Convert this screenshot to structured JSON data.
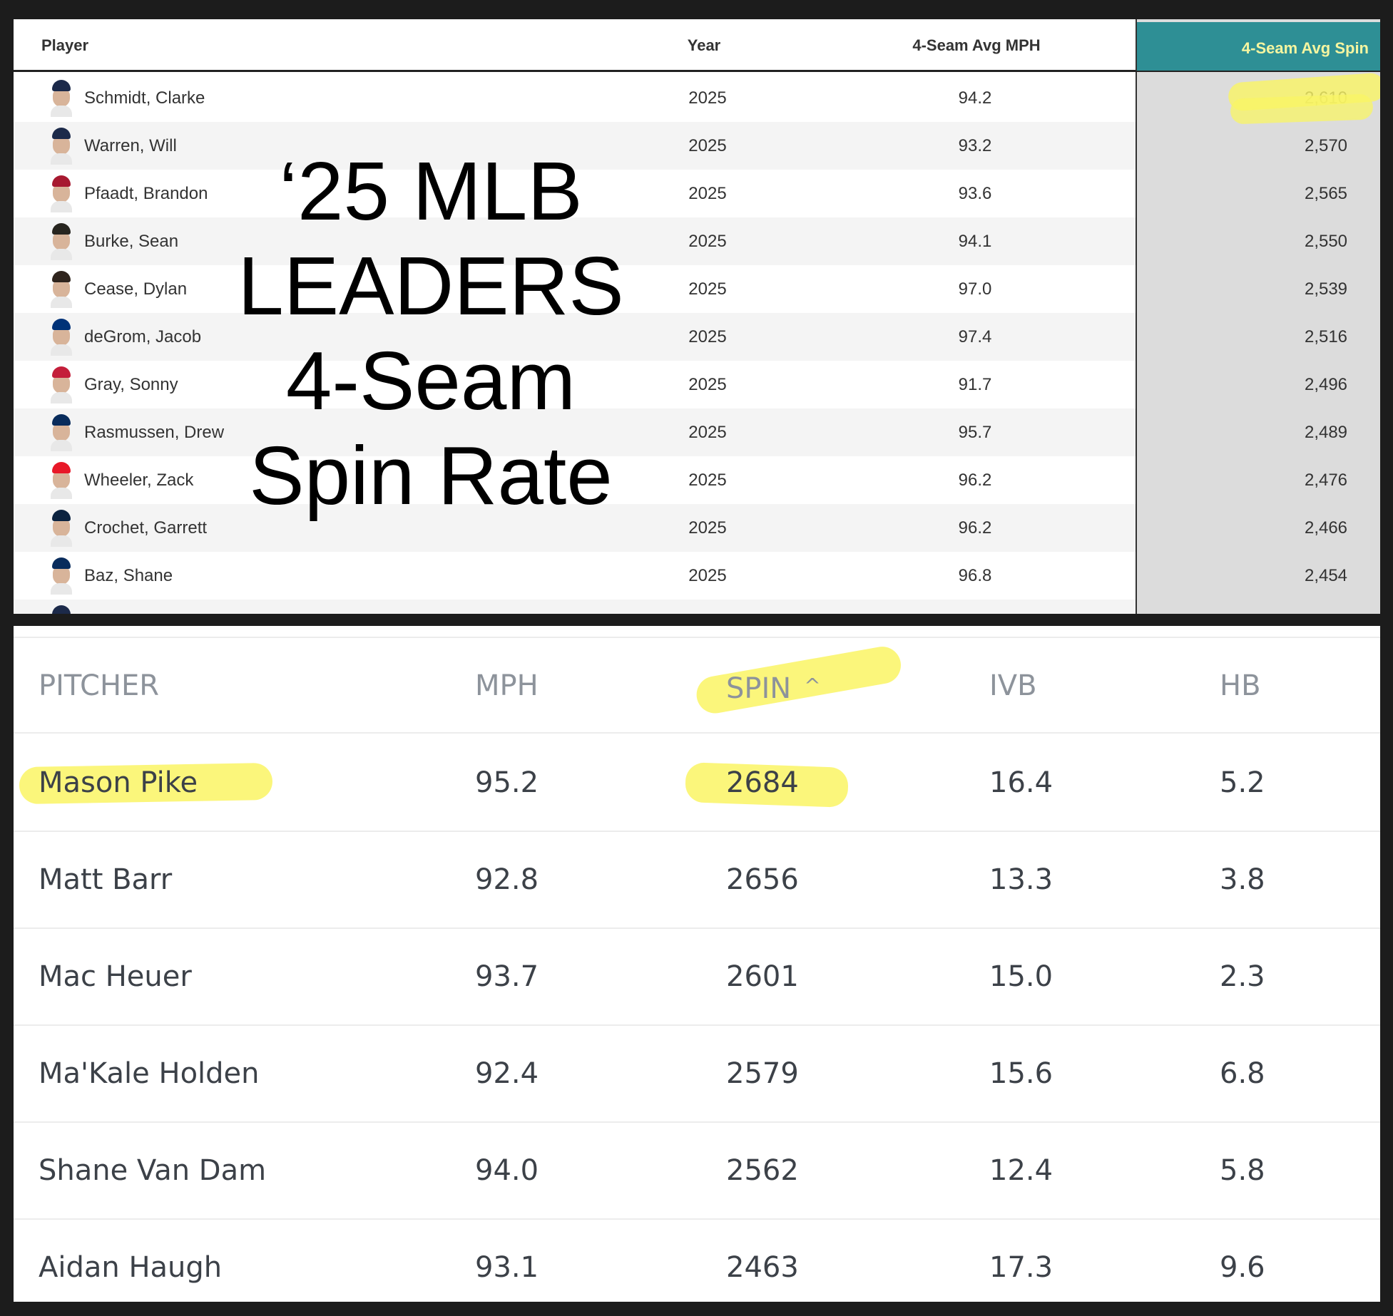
{
  "top_table": {
    "headers": {
      "player": "Player",
      "year": "Year",
      "mph": "4-Seam Avg MPH",
      "spin": "4-Seam Avg Spin"
    },
    "rows": [
      {
        "name": "Schmidt, Clarke",
        "year": "2025",
        "mph": "94.2",
        "spin": "2,610",
        "cap": "#1c2a4a"
      },
      {
        "name": "Warren, Will",
        "year": "2025",
        "mph": "93.2",
        "spin": "2,570",
        "cap": "#1c2a4a"
      },
      {
        "name": "Pfaadt, Brandon",
        "year": "2025",
        "mph": "93.6",
        "spin": "2,565",
        "cap": "#a71930"
      },
      {
        "name": "Burke, Sean",
        "year": "2025",
        "mph": "94.1",
        "spin": "2,550",
        "cap": "#27251f"
      },
      {
        "name": "Cease, Dylan",
        "year": "2025",
        "mph": "97.0",
        "spin": "2,539",
        "cap": "#2f241d"
      },
      {
        "name": "deGrom, Jacob",
        "year": "2025",
        "mph": "97.4",
        "spin": "2,516",
        "cap": "#003278"
      },
      {
        "name": "Gray, Sonny",
        "year": "2025",
        "mph": "91.7",
        "spin": "2,496",
        "cap": "#c41e3a"
      },
      {
        "name": "Rasmussen, Drew",
        "year": "2025",
        "mph": "95.7",
        "spin": "2,489",
        "cap": "#092c5c"
      },
      {
        "name": "Wheeler, Zack",
        "year": "2025",
        "mph": "96.2",
        "spin": "2,476",
        "cap": "#e81828"
      },
      {
        "name": "Crochet, Garrett",
        "year": "2025",
        "mph": "96.2",
        "spin": "2,466",
        "cap": "#0c2340"
      },
      {
        "name": "Baz, Shane",
        "year": "2025",
        "mph": "96.8",
        "spin": "2,454",
        "cap": "#092c5c"
      }
    ]
  },
  "overlay_title": [
    "‘25 MLB",
    "LEADERS",
    "4-Seam",
    "Spin Rate"
  ],
  "bottom_table": {
    "headers": {
      "pitcher": "PITCHER",
      "mph": "MPH",
      "spin": "SPIN",
      "ivb": "IVB",
      "hb": "HB"
    },
    "sort_indicator": "^",
    "rows": [
      {
        "name": "Mason Pike",
        "mph": "95.2",
        "spin": "2684",
        "ivb": "16.4",
        "hb": "5.2"
      },
      {
        "name": "Matt Barr",
        "mph": "92.8",
        "spin": "2656",
        "ivb": "13.3",
        "hb": "3.8"
      },
      {
        "name": "Mac Heuer",
        "mph": "93.7",
        "spin": "2601",
        "ivb": "15.0",
        "hb": "2.3"
      },
      {
        "name": "Ma'Kale Holden",
        "mph": "92.4",
        "spin": "2579",
        "ivb": "15.6",
        "hb": "6.8"
      },
      {
        "name": "Shane Van Dam",
        "mph": "94.0",
        "spin": "2562",
        "ivb": "12.4",
        "hb": "5.8"
      },
      {
        "name": "Aidan Haugh",
        "mph": "93.1",
        "spin": "2463",
        "ivb": "17.3",
        "hb": "9.6"
      }
    ]
  },
  "colors": {
    "spin_header_bg": "#2e8f95",
    "highlight_yellow": "#faf564",
    "highlight_green": "#78dc3c"
  }
}
